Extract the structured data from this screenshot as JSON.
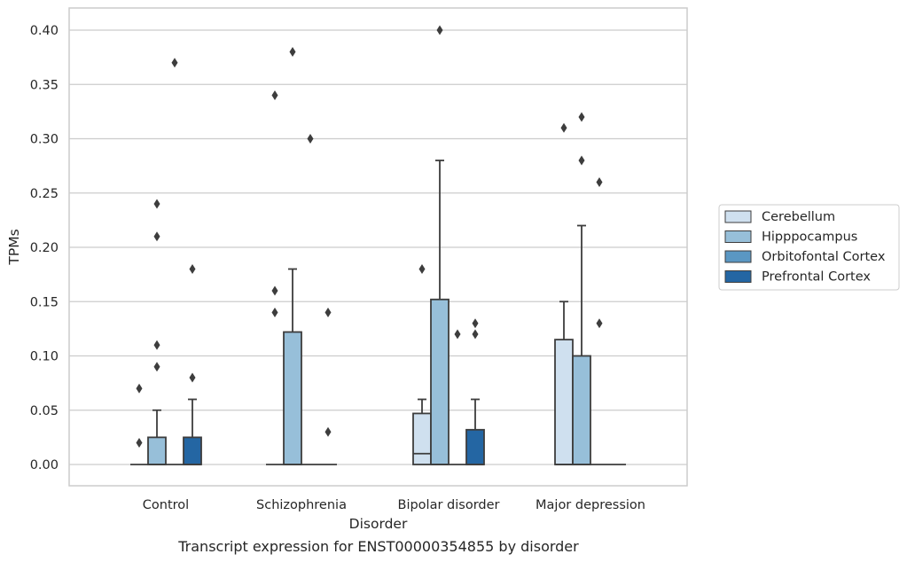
{
  "caption": "Transcript expression for ENST00000354855 by disorder",
  "chart_data": {
    "type": "box",
    "xlabel": "Disorder",
    "ylabel": "TPMs",
    "ylim": [
      -0.02,
      0.42
    ],
    "yticks": [
      0.0,
      0.05,
      0.1,
      0.15,
      0.2,
      0.25,
      0.3,
      0.35,
      0.4
    ],
    "ytick_labels": [
      "0.00",
      "0.05",
      "0.10",
      "0.15",
      "0.20",
      "0.25",
      "0.30",
      "0.35",
      "0.40"
    ],
    "grid": true,
    "legend_position": "right",
    "categories": [
      "Control",
      "Schizophrenia",
      "Bipolar disorder",
      "Major depression"
    ],
    "series": [
      {
        "name": "Cerebellum",
        "color": "#cfe0ef",
        "boxes": [
          {
            "q1": 0.0,
            "median": 0.0,
            "q3": 0.0,
            "whisker_low": 0.0,
            "whisker_high": 0.0,
            "outliers": [
              0.07,
              0.02
            ]
          },
          {
            "q1": 0.0,
            "median": 0.0,
            "q3": 0.0,
            "whisker_low": 0.0,
            "whisker_high": 0.0,
            "outliers": [
              0.34,
              0.16,
              0.14
            ]
          },
          {
            "q1": 0.0,
            "median": 0.01,
            "q3": 0.047,
            "whisker_low": 0.0,
            "whisker_high": 0.06,
            "outliers": [
              0.18
            ]
          },
          {
            "q1": 0.0,
            "median": 0.0,
            "q3": 0.115,
            "whisker_low": 0.0,
            "whisker_high": 0.15,
            "outliers": [
              0.31
            ]
          }
        ]
      },
      {
        "name": "Hipppocampus",
        "color": "#97bfd9",
        "boxes": [
          {
            "q1": 0.0,
            "median": 0.0,
            "q3": 0.025,
            "whisker_low": 0.0,
            "whisker_high": 0.05,
            "outliers": [
              0.24,
              0.21,
              0.11,
              0.09
            ]
          },
          {
            "q1": 0.0,
            "median": 0.0,
            "q3": 0.122,
            "whisker_low": 0.0,
            "whisker_high": 0.18,
            "outliers": [
              0.38
            ]
          },
          {
            "q1": 0.0,
            "median": 0.0,
            "q3": 0.152,
            "whisker_low": 0.0,
            "whisker_high": 0.28,
            "outliers": [
              0.4
            ]
          },
          {
            "q1": 0.0,
            "median": 0.0,
            "q3": 0.1,
            "whisker_low": 0.0,
            "whisker_high": 0.22,
            "outliers": [
              0.32,
              0.28
            ]
          }
        ]
      },
      {
        "name": "Orbitofontal Cortex",
        "color": "#5a97c3",
        "boxes": [
          {
            "q1": 0.0,
            "median": 0.0,
            "q3": 0.0,
            "whisker_low": 0.0,
            "whisker_high": 0.0,
            "outliers": [
              0.37
            ]
          },
          {
            "q1": 0.0,
            "median": 0.0,
            "q3": 0.0,
            "whisker_low": 0.0,
            "whisker_high": 0.0,
            "outliers": [
              0.3
            ]
          },
          {
            "q1": 0.0,
            "median": 0.0,
            "q3": 0.0,
            "whisker_low": 0.0,
            "whisker_high": 0.0,
            "outliers": [
              0.12
            ]
          },
          {
            "q1": 0.0,
            "median": 0.0,
            "q3": 0.0,
            "whisker_low": 0.0,
            "whisker_high": 0.0,
            "outliers": [
              0.26,
              0.13
            ]
          }
        ]
      },
      {
        "name": "Prefrontal Cortex",
        "color": "#2466a3",
        "boxes": [
          {
            "q1": 0.0,
            "median": 0.0,
            "q3": 0.025,
            "whisker_low": 0.0,
            "whisker_high": 0.06,
            "outliers": [
              0.18,
              0.08
            ]
          },
          {
            "q1": 0.0,
            "median": 0.0,
            "q3": 0.0,
            "whisker_low": 0.0,
            "whisker_high": 0.0,
            "outliers": [
              0.14,
              0.03
            ]
          },
          {
            "q1": 0.0,
            "median": 0.0,
            "q3": 0.032,
            "whisker_low": 0.0,
            "whisker_high": 0.06,
            "outliers": [
              0.13,
              0.12
            ]
          },
          {
            "q1": 0.0,
            "median": 0.0,
            "q3": 0.0,
            "whisker_low": 0.0,
            "whisker_high": 0.0,
            "outliers": []
          }
        ]
      }
    ]
  }
}
